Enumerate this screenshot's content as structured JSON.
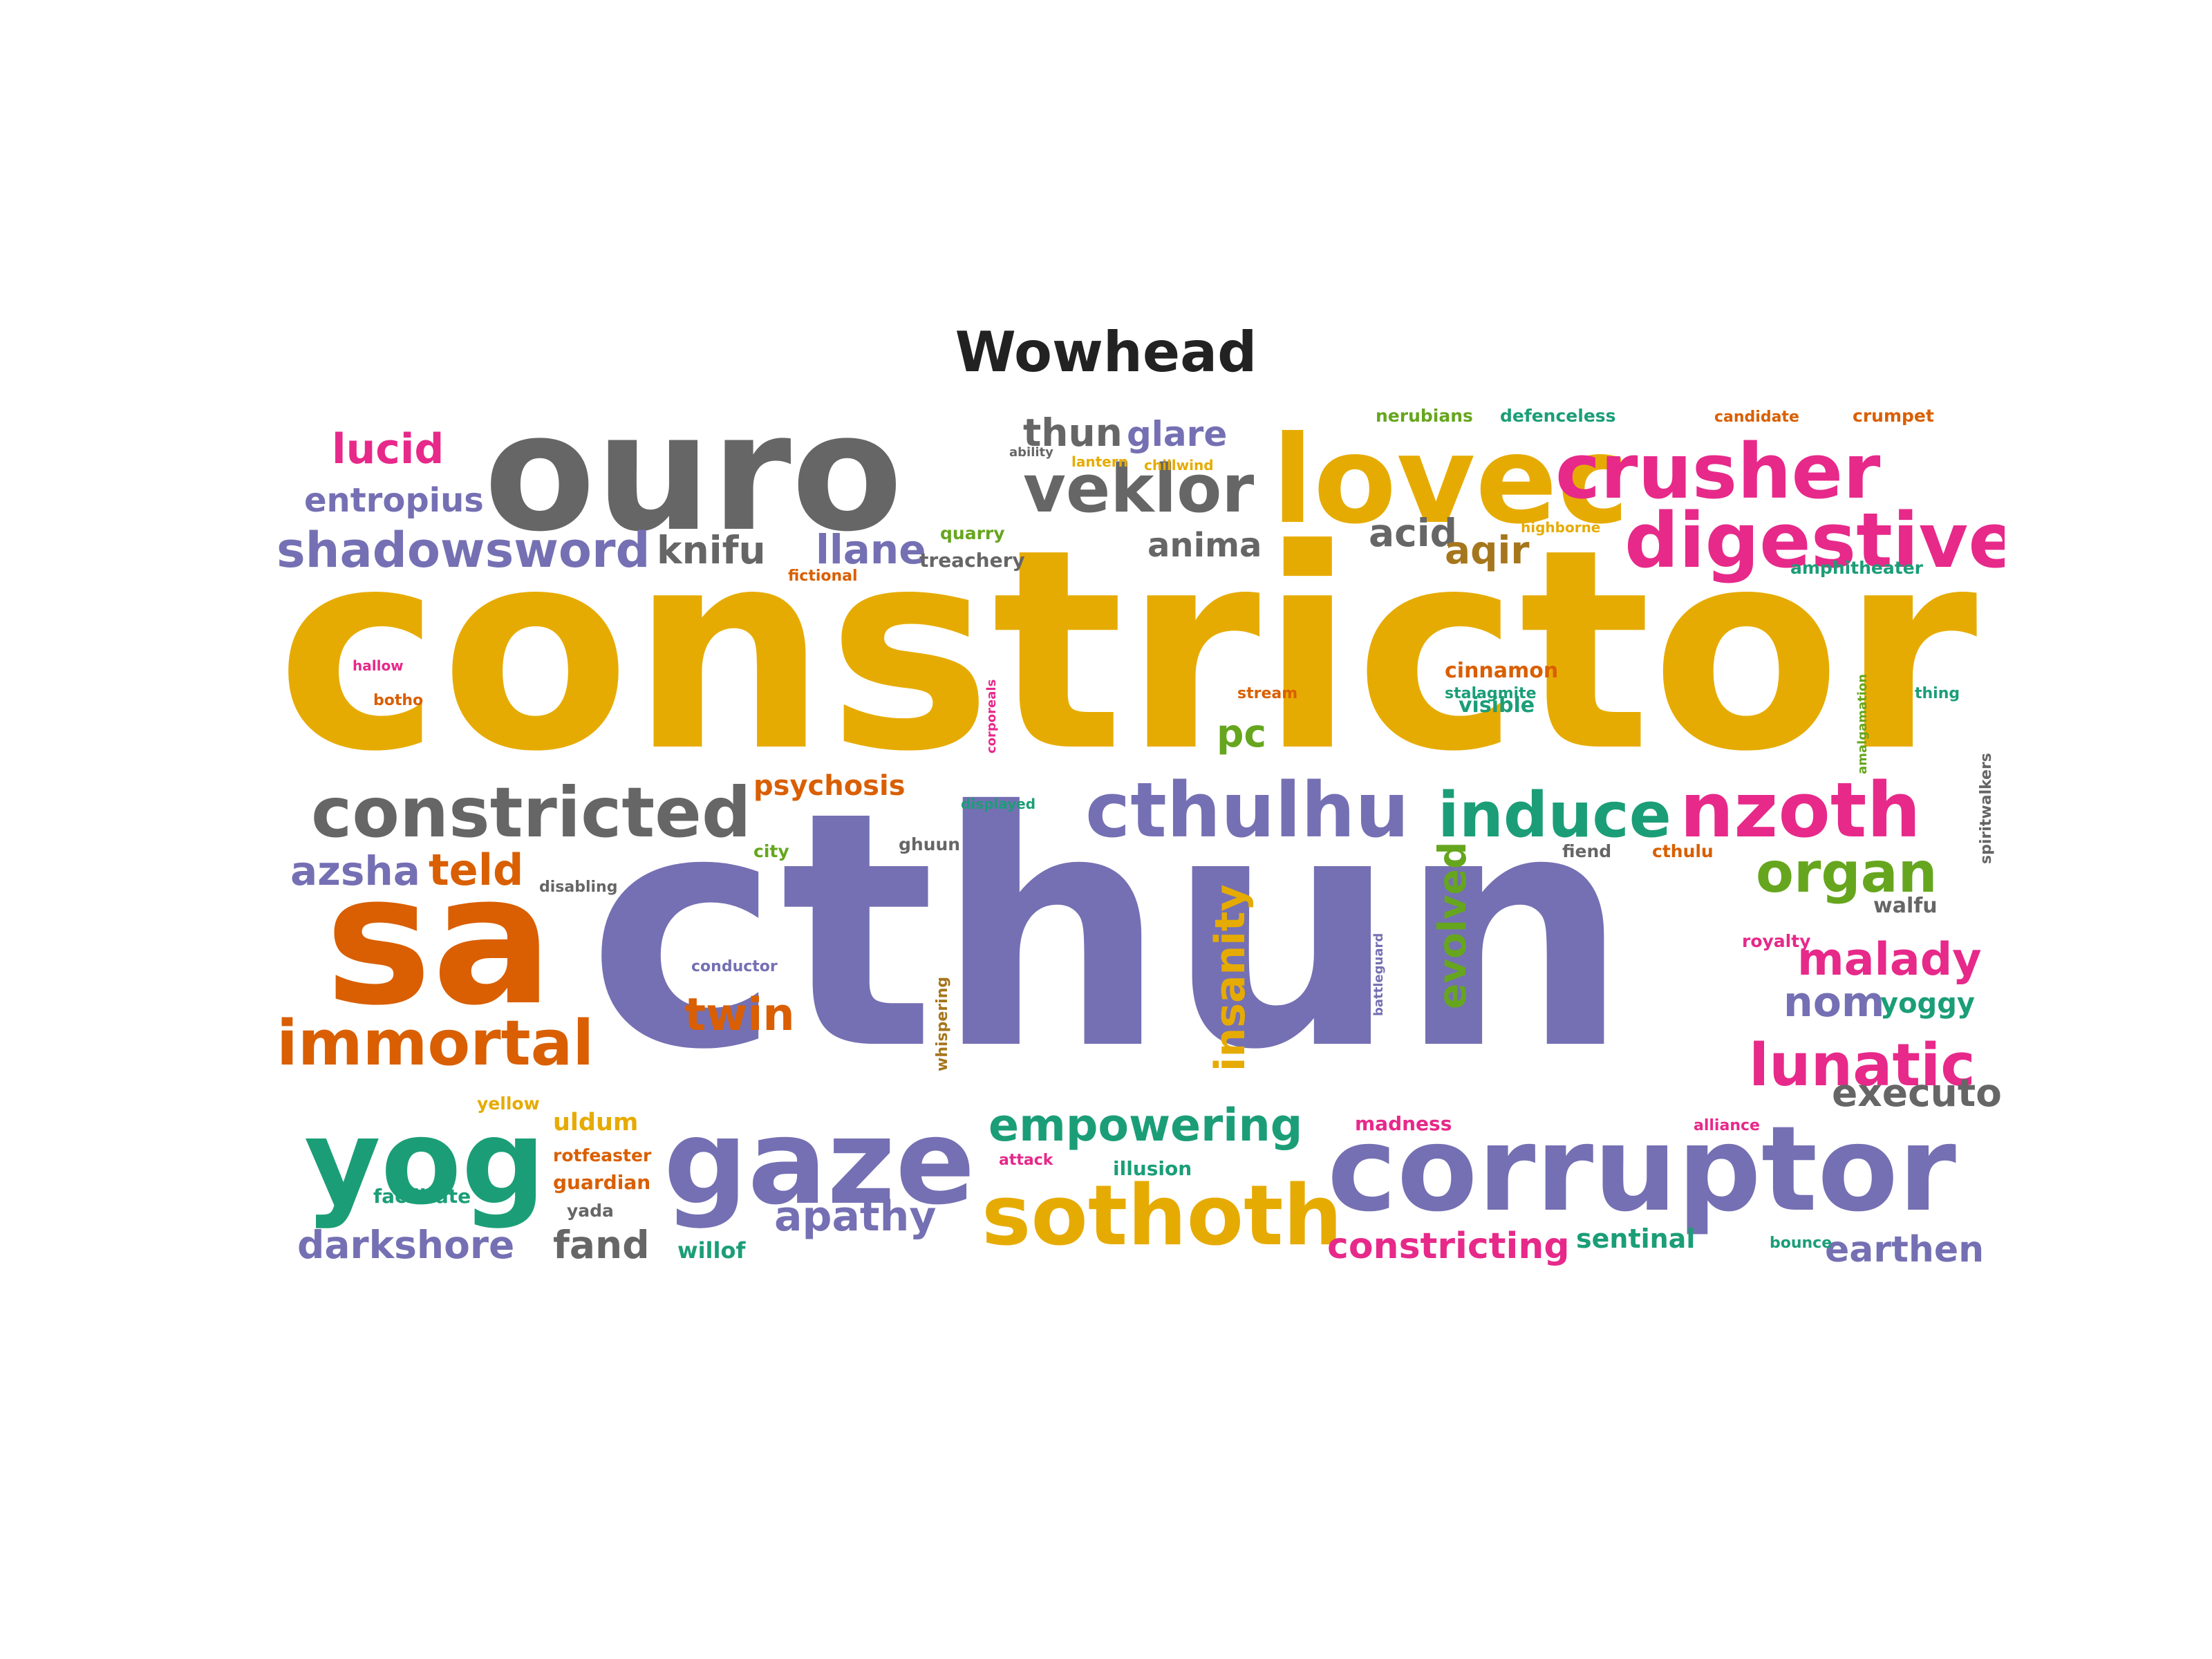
{
  "title": "Wowhead",
  "palette": {
    "gold": "#e6ab02",
    "purple": "#7570b3",
    "gray": "#666666",
    "magenta": "#e7298a",
    "orange": "#d95f02",
    "teal": "#1b9e77",
    "green": "#66a61e",
    "brown": "#a6761d"
  },
  "words": [
    {
      "text": "constrictor",
      "color": "gold"
    },
    {
      "text": "cthun",
      "color": "purple"
    },
    {
      "text": "ouro",
      "color": "gray"
    },
    {
      "text": "lovec",
      "color": "gold"
    },
    {
      "text": "crusher",
      "color": "magenta"
    },
    {
      "text": "digestive",
      "color": "magenta"
    },
    {
      "text": "veklor",
      "color": "gray"
    },
    {
      "text": "thun",
      "color": "gray"
    },
    {
      "text": "glare",
      "color": "purple"
    },
    {
      "text": "lucid",
      "color": "magenta"
    },
    {
      "text": "entropius",
      "color": "purple"
    },
    {
      "text": "shadowsword",
      "color": "purple"
    },
    {
      "text": "knifu",
      "color": "gray"
    },
    {
      "text": "llane",
      "color": "purple"
    },
    {
      "text": "anima",
      "color": "gray"
    },
    {
      "text": "acid",
      "color": "gray"
    },
    {
      "text": "aqir",
      "color": "brown"
    },
    {
      "text": "sa",
      "color": "orange"
    },
    {
      "text": "constricted",
      "color": "gray"
    },
    {
      "text": "cthulhu",
      "color": "purple"
    },
    {
      "text": "induce",
      "color": "teal"
    },
    {
      "text": "nzoth",
      "color": "magenta"
    },
    {
      "text": "organ",
      "color": "green"
    },
    {
      "text": "azsha",
      "color": "purple"
    },
    {
      "text": "teld",
      "color": "orange"
    },
    {
      "text": "immortal",
      "color": "orange"
    },
    {
      "text": "twin",
      "color": "orange"
    },
    {
      "text": "insanity",
      "color": "gold"
    },
    {
      "text": "evolved",
      "color": "green"
    },
    {
      "text": "malady",
      "color": "magenta"
    },
    {
      "text": "nom",
      "color": "purple"
    },
    {
      "text": "lunatic",
      "color": "magenta"
    },
    {
      "text": "executor",
      "color": "gray"
    },
    {
      "text": "yog",
      "color": "teal"
    },
    {
      "text": "gaze",
      "color": "purple"
    },
    {
      "text": "empowering",
      "color": "teal"
    },
    {
      "text": "corruptor",
      "color": "purple"
    },
    {
      "text": "sothoth",
      "color": "gold"
    },
    {
      "text": "apathy",
      "color": "purple"
    },
    {
      "text": "darkshore",
      "color": "purple"
    },
    {
      "text": "fand",
      "color": "gray"
    },
    {
      "text": "constricting",
      "color": "magenta"
    },
    {
      "text": "earthen",
      "color": "purple"
    },
    {
      "text": "sentinal",
      "color": "teal"
    },
    {
      "text": "psychosis",
      "color": "orange"
    },
    {
      "text": "pc",
      "color": "green"
    },
    {
      "text": "uldum",
      "color": "gold"
    },
    {
      "text": "rotfeaster",
      "color": "orange"
    },
    {
      "text": "guardian",
      "color": "orange"
    },
    {
      "text": "yoggy",
      "color": "teal"
    },
    {
      "text": "walfu",
      "color": "gray"
    },
    {
      "text": "willof",
      "color": "teal"
    },
    {
      "text": "illusion",
      "color": "teal"
    },
    {
      "text": "treachery",
      "color": "gray"
    },
    {
      "text": "quarry",
      "color": "green"
    },
    {
      "text": "nerubians",
      "color": "green"
    },
    {
      "text": "defenceless",
      "color": "teal"
    },
    {
      "text": "candidate",
      "color": "orange"
    },
    {
      "text": "crumpet",
      "color": "orange"
    },
    {
      "text": "amphitheater",
      "color": "teal"
    },
    {
      "text": "cinnamon",
      "color": "orange"
    },
    {
      "text": "visible",
      "color": "teal"
    },
    {
      "text": "fiend",
      "color": "gray"
    },
    {
      "text": "cthulu",
      "color": "orange"
    },
    {
      "text": "royalty",
      "color": "magenta"
    },
    {
      "text": "madness",
      "color": "magenta"
    },
    {
      "text": "conductor",
      "color": "purple"
    },
    {
      "text": "ghuun",
      "color": "gray"
    },
    {
      "text": "fictional",
      "color": "orange"
    },
    {
      "text": "whispering",
      "color": "brown"
    },
    {
      "text": "facilitate",
      "color": "teal"
    },
    {
      "text": "yada",
      "color": "gray"
    },
    {
      "text": "spiritwalkers",
      "color": "gray"
    },
    {
      "text": "amalgamation",
      "color": "green"
    },
    {
      "text": "battleguard",
      "color": "purple"
    },
    {
      "text": "corporeals",
      "color": "magenta"
    },
    {
      "text": "thing",
      "color": "teal"
    },
    {
      "text": "alliance",
      "color": "magenta"
    },
    {
      "text": "bounce",
      "color": "teal"
    },
    {
      "text": "city",
      "color": "green"
    },
    {
      "text": "disabling",
      "color": "gray"
    },
    {
      "text": "stalagmite",
      "color": "teal"
    },
    {
      "text": "displayed",
      "color": "teal"
    },
    {
      "text": "chillwind",
      "color": "gold"
    },
    {
      "text": "lantern",
      "color": "gold"
    },
    {
      "text": "highborne",
      "color": "gold"
    },
    {
      "text": "botho",
      "color": "orange"
    },
    {
      "text": "hallow",
      "color": "magenta"
    },
    {
      "text": "yellow",
      "color": "gold"
    },
    {
      "text": "stream",
      "color": "orange"
    },
    {
      "text": "ability",
      "color": "gray"
    },
    {
      "text": "attack",
      "color": "magenta"
    }
  ]
}
